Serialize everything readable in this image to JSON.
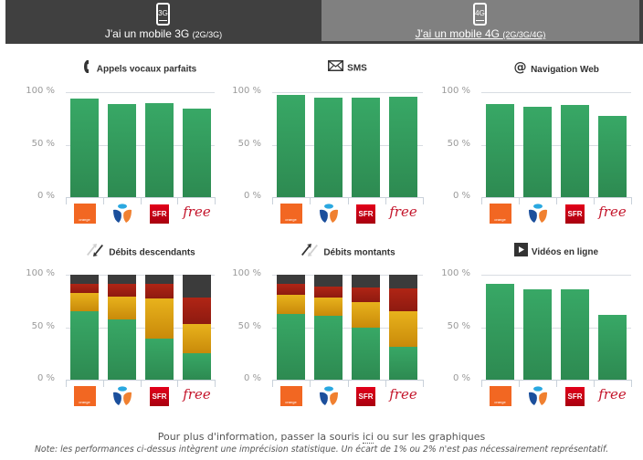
{
  "tabs": [
    {
      "icon_label": "3G",
      "label": "J'ai un mobile 3G",
      "sub": "(2G/3G)",
      "active": true
    },
    {
      "icon_label": "4G",
      "label": "J'ai un mobile 4G",
      "sub": "(2G/3G/4G)",
      "active": false
    }
  ],
  "colors": {
    "green": "#32a060",
    "yellow": "#e0a814",
    "red": "#a51d12",
    "dark": "#3a3a3a",
    "tab_active": "#404040",
    "tab_inactive": "#808080"
  },
  "operators": [
    {
      "name": "orange",
      "logo_text": "orange"
    },
    {
      "name": "bouygues",
      "logo_text": ""
    },
    {
      "name": "sfr",
      "logo_text": "SFR"
    },
    {
      "name": "free",
      "logo_text": "free"
    }
  ],
  "chart_data": [
    {
      "type": "bar",
      "title": "Appels vocaux parfaits",
      "icon": "phone-icon",
      "categories": [
        "Orange",
        "Bouygues Telecom",
        "SFR",
        "Free"
      ],
      "values": [
        94,
        89,
        90,
        84
      ],
      "yticks": [
        "100 %",
        "50 %",
        "0 %"
      ],
      "ylim": [
        0,
        100
      ],
      "grid": true
    },
    {
      "type": "bar",
      "title": "SMS",
      "icon": "envelope-icon",
      "categories": [
        "Orange",
        "Bouygues Telecom",
        "SFR",
        "Free"
      ],
      "values": [
        97,
        95,
        95,
        96
      ],
      "yticks": [
        "100 %",
        "50 %",
        "0 %"
      ],
      "ylim": [
        0,
        100
      ],
      "grid": true
    },
    {
      "type": "bar",
      "title": "Navigation Web",
      "icon": "at-icon",
      "categories": [
        "Orange",
        "Bouygues Telecom",
        "SFR",
        "Free"
      ],
      "values": [
        89,
        86,
        88,
        77
      ],
      "yticks": [
        "100 %",
        "50 %",
        "0 %"
      ],
      "ylim": [
        0,
        100
      ],
      "grid": true
    },
    {
      "type": "bar",
      "stacked": true,
      "title": "Débits descendants",
      "icon": "download-arrows-icon",
      "categories": [
        "Orange",
        "Bouygues Telecom",
        "SFR",
        "Free"
      ],
      "series": [
        {
          "name": "green",
          "values": [
            65,
            57,
            39,
            25
          ]
        },
        {
          "name": "yellow",
          "values": [
            18,
            22,
            38,
            28
          ]
        },
        {
          "name": "red",
          "values": [
            8,
            12,
            14,
            25
          ]
        },
        {
          "name": "dark",
          "values": [
            9,
            9,
            9,
            22
          ]
        }
      ],
      "yticks": [
        "100 %",
        "50 %",
        "0 %"
      ],
      "ylim": [
        0,
        100
      ],
      "grid": true
    },
    {
      "type": "bar",
      "stacked": true,
      "title": "Débits montants",
      "icon": "upload-arrows-icon",
      "categories": [
        "Orange",
        "Bouygues Telecom",
        "SFR",
        "Free"
      ],
      "series": [
        {
          "name": "green",
          "values": [
            63,
            61,
            50,
            31
          ]
        },
        {
          "name": "yellow",
          "values": [
            18,
            17,
            24,
            34
          ]
        },
        {
          "name": "red",
          "values": [
            10,
            11,
            14,
            22
          ]
        },
        {
          "name": "dark",
          "values": [
            9,
            11,
            12,
            13
          ]
        }
      ],
      "yticks": [
        "100 %",
        "50 %",
        "0 %"
      ],
      "ylim": [
        0,
        100
      ],
      "grid": true
    },
    {
      "type": "bar",
      "title": "Vidéos en ligne",
      "icon": "play-icon",
      "categories": [
        "Orange",
        "Bouygues Telecom",
        "SFR",
        "Free"
      ],
      "values": [
        91,
        86,
        86,
        62
      ],
      "yticks": [
        "100 %",
        "50 %",
        "0 %"
      ],
      "ylim": [
        0,
        100
      ],
      "grid": true
    }
  ],
  "footer": {
    "info_before": "Pour plus d'information, passer la souris ",
    "info_link": "ici",
    "info_after": " ou sur les graphiques",
    "note": "Note: les performances ci-dessus intègrent une imprécision statistique. Un écart de 1% ou 2% n'est pas nécessairement représentatif."
  }
}
